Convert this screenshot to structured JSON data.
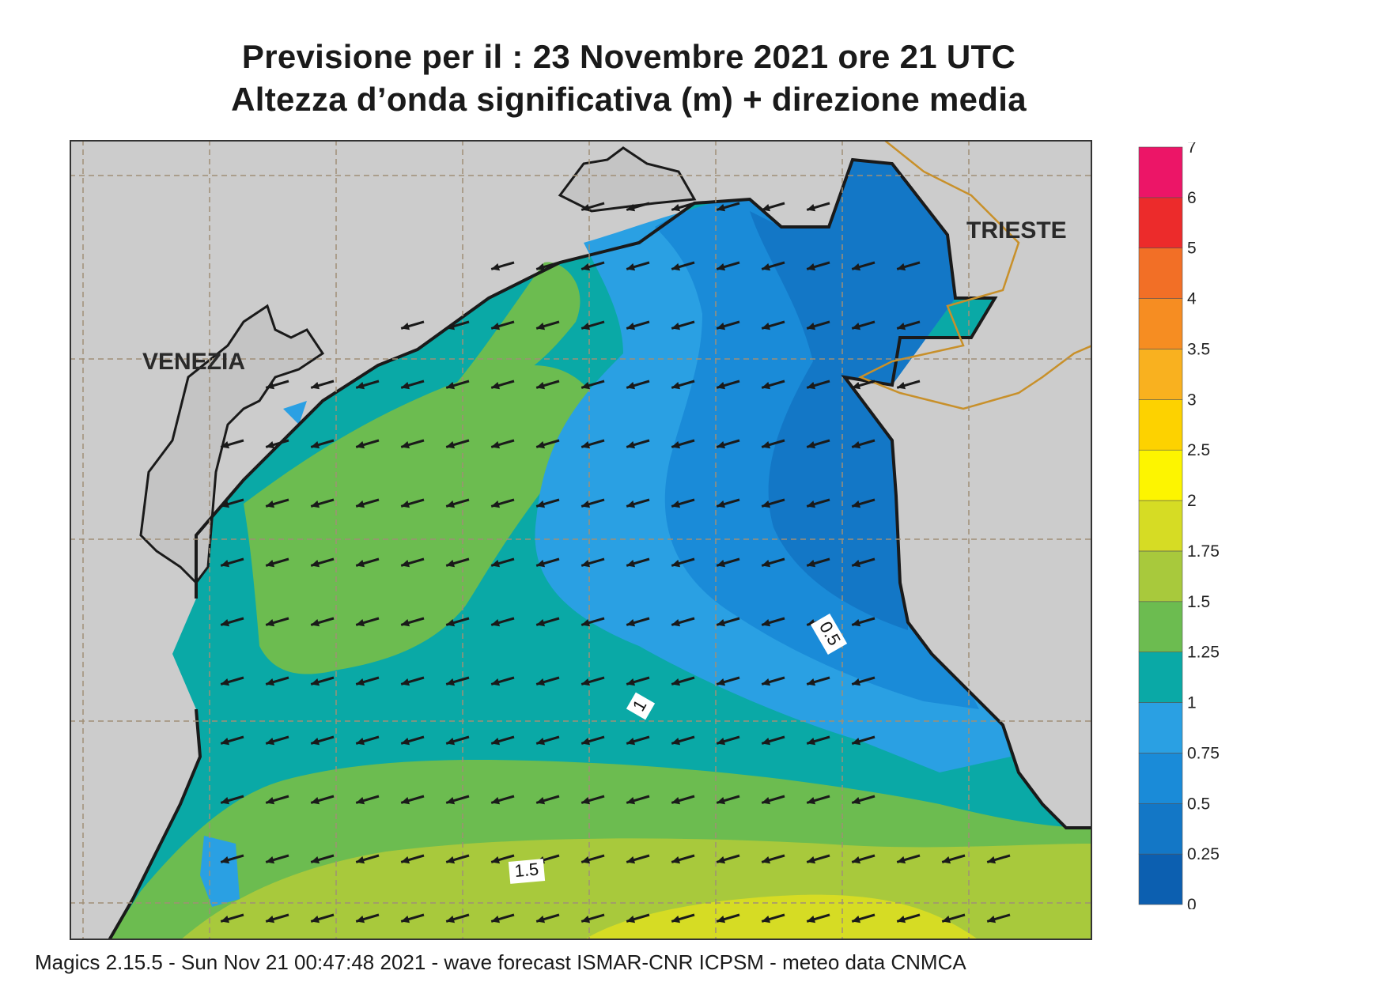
{
  "header": {
    "title_line1": "Previsione per il  :  23 Novembre  2021   ore 21 UTC",
    "title_line2": "Altezza d’onda significativa (m) + direzione media"
  },
  "map": {
    "cities": [
      {
        "name": "VENEZIA"
      },
      {
        "name": "TRIESTE"
      }
    ],
    "contour_labels": [
      "0.5",
      "1",
      "1.5"
    ],
    "arrow_direction": "towards west-southwest",
    "land_color": "#cccccc",
    "coastline_color": "#1a1a1a",
    "border_color": "#c8902a",
    "grid_color": "#a08f76"
  },
  "legend": {
    "levels": [
      "0",
      "0.25",
      "0.5",
      "0.75",
      "1",
      "1.25",
      "1.5",
      "1.75",
      "2",
      "2.5",
      "3",
      "3.5",
      "4",
      "5",
      "6",
      "7"
    ],
    "colors": [
      "#0c5fb0",
      "#1377c6",
      "#1a8bd8",
      "#2aa0e3",
      "#0aa9a6",
      "#6cbc50",
      "#a8c93c",
      "#d6dc24",
      "#fdf500",
      "#fdd200",
      "#f9b11f",
      "#f68d22",
      "#f26f26",
      "#ec2b2b",
      "#ec1567"
    ]
  },
  "footer": {
    "text": "Magics 2.15.5 - Sun Nov 21 00:47:48 2021 - wave forecast  ISMAR-CNR  ICPSM - meteo data   CNMCA"
  }
}
